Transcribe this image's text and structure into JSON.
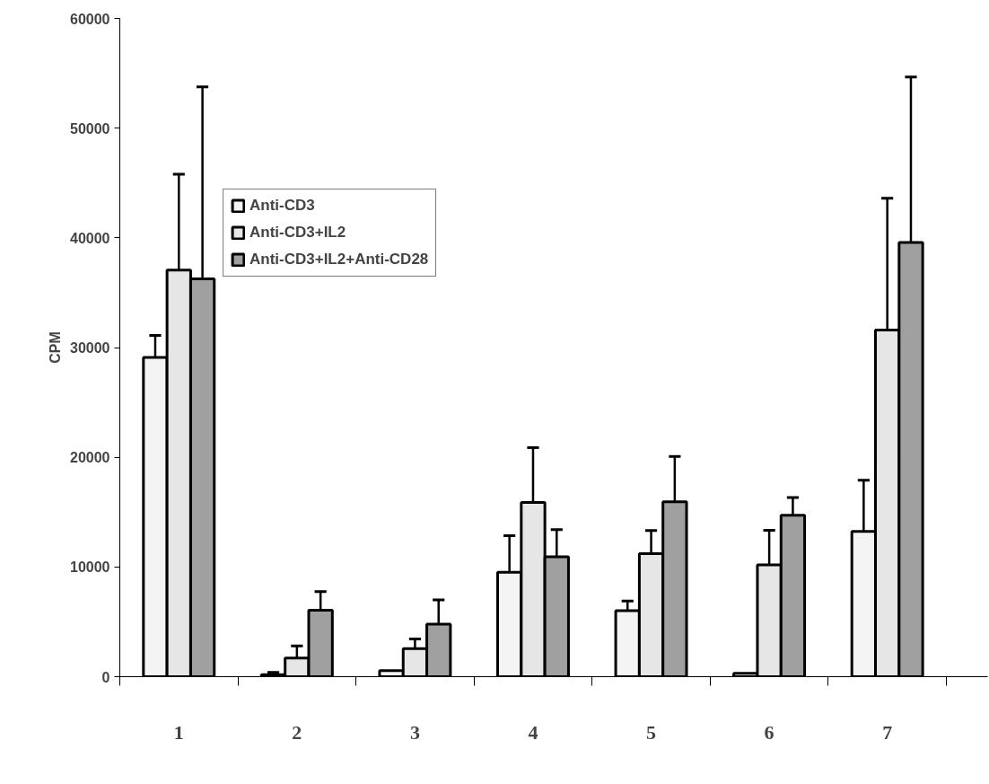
{
  "chart_data": {
    "type": "bar",
    "ylabel": "CPM",
    "categories": [
      "1",
      "2",
      "3",
      "4",
      "5",
      "6",
      "7"
    ],
    "ylim": [
      0,
      60000
    ],
    "yticks": [
      0,
      10000,
      20000,
      30000,
      40000,
      50000,
      60000
    ],
    "grid": false,
    "legend": "top left",
    "series": [
      {
        "name": "Anti-CD3",
        "color": "#f4f4f4",
        "values": [
          29100,
          180,
          550,
          9510,
          6010,
          300,
          13230
        ],
        "errors": [
          [
            29100,
            31100
          ],
          [
            180,
            380
          ],
          null,
          [
            9510,
            12850
          ],
          [
            6010,
            6900
          ],
          null,
          [
            13230,
            17900
          ]
        ]
      },
      {
        "name": "Anti-CD3+IL2",
        "color": "#e6e6e6",
        "values": [
          37070,
          1690,
          2550,
          15890,
          11210,
          10200,
          31600
        ],
        "errors": [
          [
            37070,
            45800
          ],
          [
            1690,
            2800
          ],
          [
            2550,
            3430
          ],
          [
            15890,
            20880
          ],
          [
            11210,
            13320
          ],
          [
            10200,
            13350
          ],
          [
            31600,
            43600
          ]
        ]
      },
      {
        "name": "Anti-CD3+IL2+Anti-CD28",
        "color": "#a0a0a0",
        "values": [
          36270,
          6050,
          4790,
          10930,
          15950,
          14710,
          39570
        ],
        "errors": [
          [
            36270,
            53760
          ],
          [
            6050,
            7760
          ],
          [
            4790,
            6990
          ],
          [
            10930,
            13400
          ],
          [
            15950,
            20070
          ],
          [
            14710,
            16340
          ],
          [
            39570,
            54650
          ]
        ]
      }
    ]
  }
}
